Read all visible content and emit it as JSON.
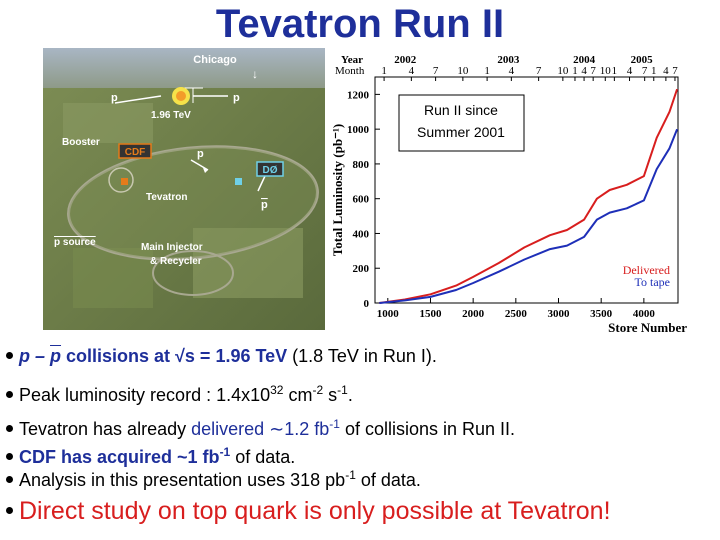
{
  "title": "Tevatron Run II",
  "photo": {
    "labels": {
      "chicago": "Chicago",
      "chicago_arrow": "↓",
      "p_left": "p",
      "p_right": "p",
      "energy": "1.96 TeV",
      "booster": "Booster",
      "cdf": "CDF",
      "p_beam": "p",
      "d0": "DØ",
      "tevatron": "Tevatron",
      "pbar": "p",
      "pbar_source": "p source",
      "main_injector_1": "Main Injector",
      "main_injector_2": "& Recycler"
    },
    "colors": {
      "label": "#ffffff",
      "cdf_box": "#e57b1a",
      "d0_box": "#6fd0e8"
    }
  },
  "chart_data": {
    "type": "line",
    "title": "",
    "xlabel": "Store Number",
    "ylabel": "Total Luminosity (pb⁻¹)",
    "x_ticks": [
      1000,
      1500,
      2000,
      2500,
      3000,
      3500,
      4000
    ],
    "y_ticks": [
      0,
      200,
      400,
      600,
      800,
      1000,
      1200
    ],
    "xlim": [
      850,
      4400
    ],
    "ylim": [
      0,
      1300
    ],
    "top_axis": {
      "year_label": "Year",
      "month_label": "Month",
      "years": [
        "2002",
        "2003",
        "2004",
        "2005"
      ],
      "months": [
        "1",
        "4",
        "7",
        "10",
        "1",
        "4",
        "7",
        "10",
        "1",
        "4",
        "7",
        "10",
        "1",
        "4",
        "7",
        "1",
        "4",
        "7"
      ]
    },
    "annotation": [
      "Run II since",
      "Summer 2001"
    ],
    "series": [
      {
        "name": "Delivered",
        "color": "#d81e1e",
        "x": [
          900,
          1200,
          1500,
          1800,
          2000,
          2300,
          2600,
          2900,
          3100,
          3300,
          3450,
          3600,
          3800,
          4000,
          4150,
          4300,
          4390
        ],
        "y": [
          0,
          20,
          50,
          100,
          150,
          230,
          320,
          390,
          420,
          480,
          600,
          650,
          680,
          730,
          950,
          1100,
          1230
        ]
      },
      {
        "name": "To tape",
        "color": "#1e2fb8",
        "x": [
          900,
          1200,
          1500,
          1800,
          2000,
          2300,
          2600,
          2900,
          3100,
          3300,
          3450,
          3600,
          3800,
          4000,
          4150,
          4300,
          4390
        ],
        "y": [
          0,
          15,
          35,
          75,
          115,
          180,
          250,
          310,
          330,
          380,
          480,
          520,
          545,
          590,
          770,
          890,
          1000
        ]
      }
    ],
    "legend": [
      "Delivered",
      "To tape"
    ],
    "legend_placement": "bottom-right"
  },
  "bullets": {
    "b1": {
      "pre": "p – ",
      "pbar": "p",
      "mid": " collisions at √s = 1.96 TeV",
      "post": " (1.8 TeV in Run I)."
    },
    "b2": {
      "pre": "Peak luminosity record : 1.4x10",
      "sup1": "32",
      "mid1": " cm",
      "sup2": "-2",
      "mid2": " s",
      "sup3": "-1",
      "post": "."
    },
    "b3": {
      "pre": "Tevatron has already ",
      "delivered": "delivered ∼1.2 fb",
      "sup": "-1",
      "post": " of collisions in Run II."
    },
    "b4": {
      "pre": "CDF has acquired ~1 fb",
      "sup": "-1",
      "post": " of data."
    },
    "b5": {
      "pre": "Analysis in this presentation uses 318 pb",
      "sup": "-1",
      "post": " of data."
    },
    "b6": {
      "text": "Direct study on top quark is only possible at Tevatron!"
    }
  }
}
